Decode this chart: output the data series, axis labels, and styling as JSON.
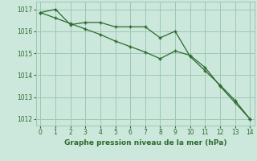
{
  "x_jagged": [
    0,
    1,
    2,
    3,
    4,
    5,
    6,
    7,
    8,
    9,
    10,
    11,
    12,
    13,
    14
  ],
  "y_jagged": [
    1016.85,
    1017.0,
    1016.3,
    1016.4,
    1016.4,
    1016.2,
    1016.2,
    1016.2,
    1015.7,
    1016.0,
    1014.85,
    1014.2,
    1013.55,
    1012.85,
    1012.0
  ],
  "x_smooth": [
    0,
    1,
    2,
    3,
    4,
    5,
    6,
    7,
    8,
    9,
    10,
    11,
    12,
    13,
    14
  ],
  "y_smooth": [
    1016.85,
    1016.6,
    1016.35,
    1016.1,
    1015.85,
    1015.55,
    1015.3,
    1015.05,
    1014.75,
    1015.1,
    1014.9,
    1014.35,
    1013.5,
    1012.75,
    1012.0
  ],
  "line_color": "#2d6a2d",
  "bg_color": "#cce8dc",
  "grid_color": "#9ec8b2",
  "xlabel": "Graphe pression niveau de la mer (hPa)",
  "xlim": [
    -0.3,
    14.3
  ],
  "ylim": [
    1011.7,
    1017.35
  ],
  "yticks": [
    1012,
    1013,
    1014,
    1015,
    1016,
    1017
  ],
  "xticks": [
    0,
    1,
    2,
    3,
    4,
    5,
    6,
    7,
    8,
    9,
    10,
    11,
    12,
    13,
    14
  ],
  "marker": "+"
}
